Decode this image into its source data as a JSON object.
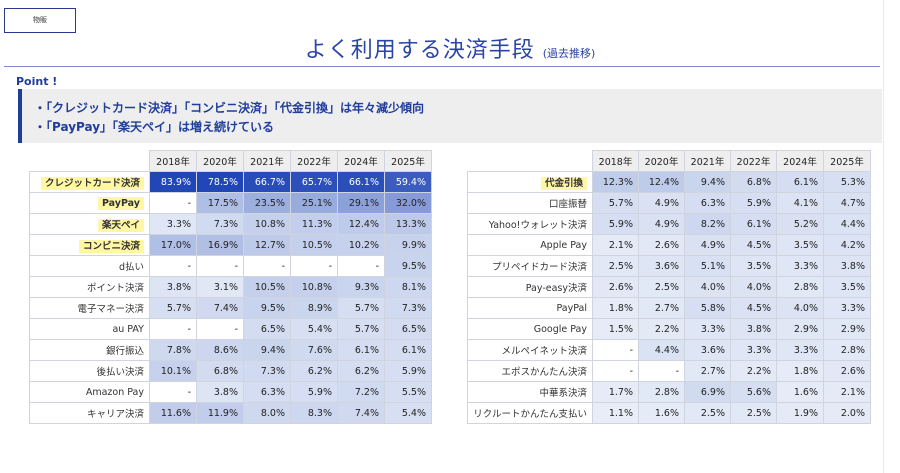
{
  "header": {
    "tag": "物販",
    "title": "よく利用する決済手段",
    "subtitle": "(過去推移)"
  },
  "point": {
    "label": "Point !",
    "lines": [
      "・「クレジットカード決済」「コンビニ決済」「代金引換」は年々減少傾向",
      "・「PayPay」「楽天ペイ」は増え続けている"
    ]
  },
  "years": [
    "2018年",
    "2020年",
    "2021年",
    "2022年",
    "2024年",
    "2025年"
  ],
  "colors": {
    "accent": "#1f3d9a",
    "highlight": "#fff7a3",
    "dark": "#2146b5",
    "light": "#eef3fa"
  },
  "left_table": {
    "rows": [
      {
        "name": "クレジットカード決済",
        "highlight": true,
        "values": [
          "83.9%",
          "78.5%",
          "66.7%",
          "65.7%",
          "66.1%",
          "59.4%"
        ]
      },
      {
        "name": "PayPay",
        "highlight": true,
        "values": [
          "-",
          "17.5%",
          "23.5%",
          "25.1%",
          "29.1%",
          "32.0%"
        ]
      },
      {
        "name": "楽天ペイ",
        "highlight": true,
        "values": [
          "3.3%",
          "7.3%",
          "10.8%",
          "11.3%",
          "12.4%",
          "13.3%"
        ]
      },
      {
        "name": "コンビニ決済",
        "highlight": true,
        "values": [
          "17.0%",
          "16.9%",
          "12.7%",
          "10.5%",
          "10.2%",
          "9.9%"
        ]
      },
      {
        "name": "d払い",
        "highlight": false,
        "values": [
          "-",
          "-",
          "-",
          "-",
          "-",
          "9.5%"
        ]
      },
      {
        "name": "ポイント決済",
        "highlight": false,
        "values": [
          "3.8%",
          "3.1%",
          "10.5%",
          "10.8%",
          "9.3%",
          "8.1%"
        ]
      },
      {
        "name": "電子マネー決済",
        "highlight": false,
        "values": [
          "5.7%",
          "7.4%",
          "9.5%",
          "8.9%",
          "5.7%",
          "7.3%"
        ]
      },
      {
        "name": "au PAY",
        "highlight": false,
        "values": [
          "-",
          "-",
          "6.5%",
          "5.4%",
          "5.7%",
          "6.5%"
        ]
      },
      {
        "name": "銀行振込",
        "highlight": false,
        "values": [
          "7.8%",
          "8.6%",
          "9.4%",
          "7.6%",
          "6.1%",
          "6.1%"
        ]
      },
      {
        "name": "後払い決済",
        "highlight": false,
        "values": [
          "10.1%",
          "6.8%",
          "7.3%",
          "6.2%",
          "6.2%",
          "5.9%"
        ]
      },
      {
        "name": "Amazon Pay",
        "highlight": false,
        "values": [
          "-",
          "3.8%",
          "6.3%",
          "5.9%",
          "7.2%",
          "5.5%"
        ]
      },
      {
        "name": "キャリア決済",
        "highlight": false,
        "values": [
          "11.6%",
          "11.9%",
          "8.0%",
          "8.3%",
          "7.4%",
          "5.4%"
        ]
      }
    ]
  },
  "right_table": {
    "rows": [
      {
        "name": "代金引換",
        "highlight": true,
        "values": [
          "12.3%",
          "12.4%",
          "9.4%",
          "6.8%",
          "6.1%",
          "5.3%"
        ]
      },
      {
        "name": "口座振替",
        "highlight": false,
        "values": [
          "5.7%",
          "4.9%",
          "6.3%",
          "5.9%",
          "4.1%",
          "4.7%"
        ]
      },
      {
        "name": "Yahoo!ウォレット決済",
        "highlight": false,
        "values": [
          "5.9%",
          "4.9%",
          "8.2%",
          "6.1%",
          "5.2%",
          "4.4%"
        ]
      },
      {
        "name": "Apple Pay",
        "highlight": false,
        "values": [
          "2.1%",
          "2.6%",
          "4.9%",
          "4.5%",
          "3.5%",
          "4.2%"
        ]
      },
      {
        "name": "プリペイドカード決済",
        "highlight": false,
        "values": [
          "2.5%",
          "3.6%",
          "5.1%",
          "3.5%",
          "3.3%",
          "3.8%"
        ]
      },
      {
        "name": "Pay-easy決済",
        "highlight": false,
        "values": [
          "2.6%",
          "2.5%",
          "4.0%",
          "4.0%",
          "2.8%",
          "3.5%"
        ]
      },
      {
        "name": "PayPal",
        "highlight": false,
        "values": [
          "1.8%",
          "2.7%",
          "5.8%",
          "4.5%",
          "4.0%",
          "3.3%"
        ]
      },
      {
        "name": "Google Pay",
        "highlight": false,
        "values": [
          "1.5%",
          "2.2%",
          "3.3%",
          "3.8%",
          "2.9%",
          "2.9%"
        ]
      },
      {
        "name": "メルペイネット決済",
        "highlight": false,
        "values": [
          "-",
          "4.4%",
          "3.6%",
          "3.3%",
          "3.3%",
          "2.8%"
        ]
      },
      {
        "name": "エポスかんたん決済",
        "highlight": false,
        "values": [
          "-",
          "-",
          "2.7%",
          "2.2%",
          "1.8%",
          "2.6%"
        ]
      },
      {
        "name": "中華系決済",
        "highlight": false,
        "values": [
          "1.7%",
          "2.8%",
          "6.9%",
          "5.6%",
          "1.6%",
          "2.1%"
        ]
      },
      {
        "name": "リクルートかんたん支払い",
        "highlight": false,
        "values": [
          "1.1%",
          "1.6%",
          "2.5%",
          "2.5%",
          "1.9%",
          "2.0%"
        ]
      }
    ]
  }
}
